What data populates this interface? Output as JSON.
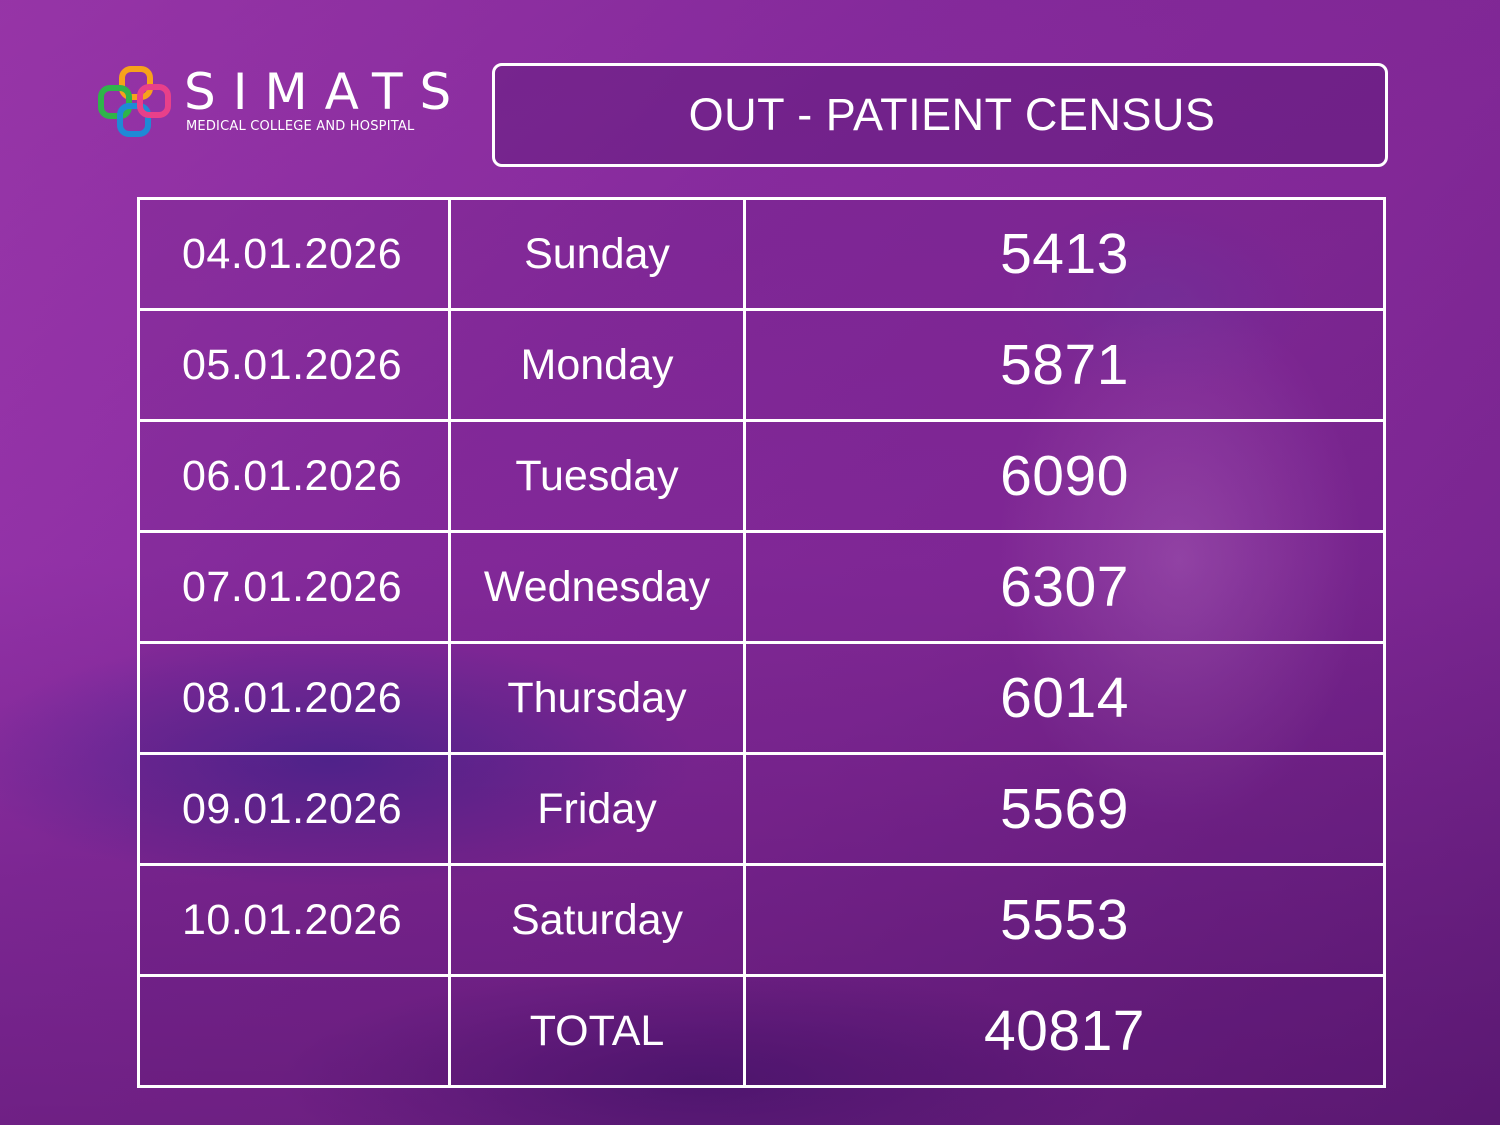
{
  "logo": {
    "wordmark": "SIMATS",
    "subtitle": "MEDICAL COLLEGE AND HOSPITAL",
    "colors": [
      "#f7a21b",
      "#2fb44a",
      "#1e8ad6",
      "#e8408a"
    ]
  },
  "title": "OUT - PATIENT CENSUS",
  "table": {
    "rows": [
      {
        "date": "04.01.2026",
        "day": "Sunday",
        "count": "5413"
      },
      {
        "date": "05.01.2026",
        "day": "Monday",
        "count": "5871"
      },
      {
        "date": "06.01.2026",
        "day": "Tuesday",
        "count": "6090"
      },
      {
        "date": "07.01.2026",
        "day": "Wednesday",
        "count": "6307"
      },
      {
        "date": "08.01.2026",
        "day": "Thursday",
        "count": "6014"
      },
      {
        "date": "09.01.2026",
        "day": "Friday",
        "count": "5569"
      },
      {
        "date": "10.01.2026",
        "day": "Saturday",
        "count": "5553"
      }
    ],
    "total": {
      "date": "",
      "label": "TOTAL",
      "count": "40817"
    }
  },
  "colors": {
    "background": "#8f2fa6",
    "text": "#ffffff",
    "border": "#ffffff"
  }
}
